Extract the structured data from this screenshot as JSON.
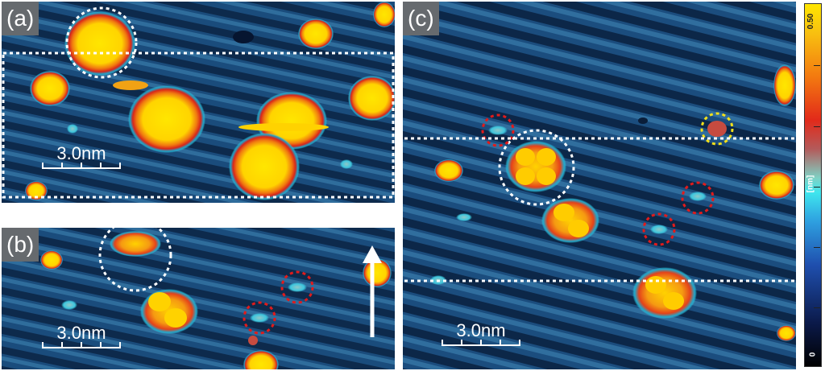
{
  "panels": {
    "a": {
      "label": "(a)",
      "scale_label": "3.0nm"
    },
    "b": {
      "label": "(b)",
      "scale_label": "3.0nm"
    },
    "c": {
      "label": "(c)",
      "scale_label": "3.0nm"
    }
  },
  "colorbar": {
    "max_label": "0.50",
    "min_label": "0",
    "unit_label": "[nm]"
  },
  "colors": {
    "substrate": "#1c4f80",
    "stripe_dark": "#0d2a4c",
    "stripe_light": "#2f6d9c",
    "adsorbate_core": "#ffe600",
    "adsorbate_rim": "#e0301a",
    "halo": "#3fe6ee",
    "marker_white": "#ffffff",
    "marker_red": "#e11b1b",
    "marker_yellow": "#f4e11a"
  }
}
